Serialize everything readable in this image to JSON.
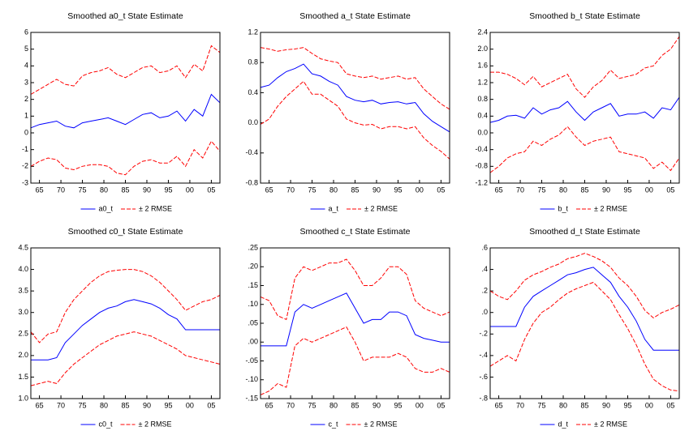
{
  "chart_data": [
    {
      "type": "line",
      "title": "Smoothed a0_t State Estimate",
      "x": [
        1963,
        1965,
        1967,
        1969,
        1971,
        1973,
        1975,
        1977,
        1979,
        1981,
        1983,
        1985,
        1987,
        1989,
        1991,
        1993,
        1995,
        1997,
        1999,
        2001,
        2003,
        2005,
        2007
      ],
      "xlim": [
        1963,
        2007
      ],
      "xticks": [
        {
          "value": 1965,
          "label": "65"
        },
        {
          "value": 1970,
          "label": "70"
        },
        {
          "value": 1975,
          "label": "75"
        },
        {
          "value": 1980,
          "label": "80"
        },
        {
          "value": 1985,
          "label": "85"
        },
        {
          "value": 1990,
          "label": "90"
        },
        {
          "value": 1995,
          "label": "95"
        },
        {
          "value": 2000,
          "label": "00"
        },
        {
          "value": 2005,
          "label": "05"
        }
      ],
      "ylim": [
        -3,
        6
      ],
      "yticks": [
        -3,
        -2,
        -1,
        0,
        1,
        2,
        3,
        4,
        5,
        6
      ],
      "series": [
        {
          "name": "a0_t",
          "color": "#0000ff",
          "values": [
            0.3,
            0.5,
            0.6,
            0.7,
            0.4,
            0.3,
            0.6,
            0.7,
            0.8,
            0.9,
            0.7,
            0.5,
            0.8,
            1.1,
            1.2,
            0.9,
            1.0,
            1.3,
            0.7,
            1.4,
            1.0,
            2.3,
            1.8
          ]
        },
        {
          "name": "± 2 RMSE",
          "color": "#ff0000",
          "upper": [
            2.3,
            2.6,
            2.9,
            3.2,
            2.9,
            2.8,
            3.4,
            3.6,
            3.7,
            3.9,
            3.5,
            3.3,
            3.6,
            3.9,
            4.0,
            3.6,
            3.7,
            4.0,
            3.3,
            4.1,
            3.7,
            5.2,
            4.8
          ],
          "lower": [
            -2.0,
            -1.7,
            -1.5,
            -1.6,
            -2.1,
            -2.2,
            -2.0,
            -1.9,
            -1.9,
            -2.0,
            -2.4,
            -2.5,
            -2.0,
            -1.7,
            -1.6,
            -1.8,
            -1.8,
            -1.4,
            -2.0,
            -1.0,
            -1.5,
            -0.5,
            -1.1
          ]
        }
      ]
    },
    {
      "type": "line",
      "title": "Smoothed a_t State Estimate",
      "x": [
        1963,
        1965,
        1967,
        1969,
        1971,
        1973,
        1975,
        1977,
        1979,
        1981,
        1983,
        1985,
        1987,
        1989,
        1991,
        1993,
        1995,
        1997,
        1999,
        2001,
        2003,
        2005,
        2007
      ],
      "xlim": [
        1963,
        2007
      ],
      "xticks": [
        {
          "value": 1965,
          "label": "65"
        },
        {
          "value": 1970,
          "label": "70"
        },
        {
          "value": 1975,
          "label": "75"
        },
        {
          "value": 1980,
          "label": "80"
        },
        {
          "value": 1985,
          "label": "85"
        },
        {
          "value": 1990,
          "label": "90"
        },
        {
          "value": 1995,
          "label": "95"
        },
        {
          "value": 2000,
          "label": "00"
        },
        {
          "value": 2005,
          "label": "05"
        }
      ],
      "ylim": [
        -0.8,
        1.2
      ],
      "yticks": [
        -0.8,
        -0.4,
        {
          "value": 0,
          "label": "0.0"
        },
        0.4,
        0.8,
        1.2
      ],
      "series": [
        {
          "name": "a_t",
          "color": "#0000ff",
          "values": [
            0.47,
            0.5,
            0.6,
            0.68,
            0.72,
            0.78,
            0.65,
            0.62,
            0.55,
            0.5,
            0.35,
            0.3,
            0.28,
            0.3,
            0.25,
            0.27,
            0.28,
            0.25,
            0.27,
            0.12,
            0.02,
            -0.05,
            -0.12
          ]
        },
        {
          "name": "± 2 RMSE",
          "color": "#ff0000",
          "upper": [
            1.0,
            0.98,
            0.95,
            0.97,
            0.98,
            1.0,
            0.92,
            0.85,
            0.82,
            0.8,
            0.65,
            0.62,
            0.6,
            0.62,
            0.58,
            0.6,
            0.62,
            0.58,
            0.6,
            0.45,
            0.35,
            0.25,
            0.18
          ],
          "lower": [
            -0.02,
            0.05,
            0.22,
            0.35,
            0.45,
            0.55,
            0.38,
            0.38,
            0.3,
            0.22,
            0.05,
            0.0,
            -0.03,
            -0.02,
            -0.08,
            -0.05,
            -0.05,
            -0.08,
            -0.05,
            -0.2,
            -0.3,
            -0.38,
            -0.48
          ]
        }
      ]
    },
    {
      "type": "line",
      "title": "Smoothed b_t State Estimate",
      "x": [
        1963,
        1965,
        1967,
        1969,
        1971,
        1973,
        1975,
        1977,
        1979,
        1981,
        1983,
        1985,
        1987,
        1989,
        1991,
        1993,
        1995,
        1997,
        1999,
        2001,
        2003,
        2005,
        2007
      ],
      "xlim": [
        1963,
        2007
      ],
      "xticks": [
        {
          "value": 1965,
          "label": "65"
        },
        {
          "value": 1970,
          "label": "70"
        },
        {
          "value": 1975,
          "label": "75"
        },
        {
          "value": 1980,
          "label": "80"
        },
        {
          "value": 1985,
          "label": "85"
        },
        {
          "value": 1990,
          "label": "90"
        },
        {
          "value": 1995,
          "label": "95"
        },
        {
          "value": 2000,
          "label": "00"
        },
        {
          "value": 2005,
          "label": "05"
        }
      ],
      "ylim": [
        -1.2,
        2.4
      ],
      "yticks": [
        -1.2,
        -0.8,
        -0.4,
        {
          "value": 0,
          "label": "0.0"
        },
        0.4,
        0.8,
        1.2,
        1.6,
        {
          "value": 2,
          "label": "2.0"
        },
        2.4
      ],
      "series": [
        {
          "name": "b_t",
          "color": "#0000ff",
          "values": [
            0.25,
            0.3,
            0.4,
            0.42,
            0.35,
            0.6,
            0.45,
            0.55,
            0.6,
            0.75,
            0.5,
            0.3,
            0.5,
            0.6,
            0.7,
            0.4,
            0.45,
            0.45,
            0.5,
            0.35,
            0.6,
            0.55,
            0.85
          ]
        },
        {
          "name": "± 2 RMSE",
          "color": "#ff0000",
          "upper": [
            1.45,
            1.45,
            1.4,
            1.3,
            1.15,
            1.35,
            1.1,
            1.2,
            1.3,
            1.4,
            1.05,
            0.85,
            1.1,
            1.25,
            1.5,
            1.3,
            1.35,
            1.4,
            1.55,
            1.6,
            1.85,
            2.0,
            2.3
          ],
          "lower": [
            -0.95,
            -0.8,
            -0.6,
            -0.5,
            -0.45,
            -0.2,
            -0.3,
            -0.15,
            -0.05,
            0.15,
            -0.1,
            -0.3,
            -0.2,
            -0.15,
            -0.1,
            -0.45,
            -0.5,
            -0.55,
            -0.6,
            -0.85,
            -0.7,
            -0.9,
            -0.6
          ]
        }
      ]
    },
    {
      "type": "line",
      "title": "Smoothed c0_t State Estimate",
      "x": [
        1963,
        1965,
        1967,
        1969,
        1971,
        1973,
        1975,
        1977,
        1979,
        1981,
        1983,
        1985,
        1987,
        1989,
        1991,
        1993,
        1995,
        1997,
        1999,
        2001,
        2003,
        2005,
        2007
      ],
      "xlim": [
        1963,
        2007
      ],
      "xticks": [
        {
          "value": 1965,
          "label": "65"
        },
        {
          "value": 1970,
          "label": "70"
        },
        {
          "value": 1975,
          "label": "75"
        },
        {
          "value": 1980,
          "label": "80"
        },
        {
          "value": 1985,
          "label": "85"
        },
        {
          "value": 1990,
          "label": "90"
        },
        {
          "value": 1995,
          "label": "95"
        },
        {
          "value": 2000,
          "label": "00"
        },
        {
          "value": 2005,
          "label": "05"
        }
      ],
      "ylim": [
        1,
        4.5
      ],
      "yticks": [
        {
          "value": 1,
          "label": "1.0"
        },
        1.5,
        {
          "value": 2,
          "label": "2.0"
        },
        2.5,
        {
          "value": 3,
          "label": "3.0"
        },
        3.5,
        {
          "value": 4,
          "label": "4.0"
        },
        4.5
      ],
      "series": [
        {
          "name": "c0_t",
          "color": "#0000ff",
          "values": [
            1.9,
            1.9,
            1.9,
            1.95,
            2.3,
            2.5,
            2.7,
            2.85,
            3.0,
            3.1,
            3.15,
            3.25,
            3.3,
            3.25,
            3.2,
            3.1,
            2.95,
            2.85,
            2.6,
            2.6,
            2.6,
            2.6,
            2.6
          ]
        },
        {
          "name": "± 2 RMSE",
          "color": "#ff0000",
          "upper": [
            2.55,
            2.3,
            2.5,
            2.55,
            3.0,
            3.3,
            3.5,
            3.7,
            3.85,
            3.95,
            3.98,
            4.0,
            4.0,
            3.95,
            3.85,
            3.7,
            3.5,
            3.3,
            3.05,
            3.15,
            3.25,
            3.3,
            3.4
          ],
          "lower": [
            1.3,
            1.35,
            1.4,
            1.35,
            1.6,
            1.8,
            1.95,
            2.1,
            2.25,
            2.35,
            2.45,
            2.5,
            2.55,
            2.5,
            2.45,
            2.35,
            2.25,
            2.15,
            2.0,
            1.95,
            1.9,
            1.85,
            1.8
          ]
        }
      ]
    },
    {
      "type": "line",
      "title": "Smoothed c_t State Estimate",
      "x": [
        1963,
        1965,
        1967,
        1969,
        1971,
        1973,
        1975,
        1977,
        1979,
        1981,
        1983,
        1985,
        1987,
        1989,
        1991,
        1993,
        1995,
        1997,
        1999,
        2001,
        2003,
        2005,
        2007
      ],
      "xlim": [
        1963,
        2007
      ],
      "xticks": [
        {
          "value": 1965,
          "label": "65"
        },
        {
          "value": 1970,
          "label": "70"
        },
        {
          "value": 1975,
          "label": "75"
        },
        {
          "value": 1980,
          "label": "80"
        },
        {
          "value": 1985,
          "label": "85"
        },
        {
          "value": 1990,
          "label": "90"
        },
        {
          "value": 1995,
          "label": "95"
        },
        {
          "value": 2000,
          "label": "00"
        },
        {
          "value": 2005,
          "label": "05"
        }
      ],
      "ylim": [
        -0.15,
        0.25
      ],
      "yticks": [
        {
          "value": -0.15,
          "label": "-.15"
        },
        {
          "value": -0.1,
          "label": "-.10"
        },
        {
          "value": -0.05,
          "label": "-.05"
        },
        {
          "value": 0,
          "label": ".00"
        },
        {
          "value": 0.05,
          "label": ".05"
        },
        {
          "value": 0.1,
          "label": ".10"
        },
        {
          "value": 0.15,
          "label": ".15"
        },
        {
          "value": 0.2,
          "label": ".20"
        },
        {
          "value": 0.25,
          "label": ".25"
        }
      ],
      "series": [
        {
          "name": "c_t",
          "color": "#0000ff",
          "values": [
            -0.01,
            -0.01,
            -0.01,
            -0.01,
            0.08,
            0.1,
            0.09,
            0.1,
            0.11,
            0.12,
            0.13,
            0.09,
            0.05,
            0.06,
            0.06,
            0.08,
            0.08,
            0.07,
            0.02,
            0.01,
            0.005,
            0.0,
            0.0
          ]
        },
        {
          "name": "± 2 RMSE",
          "color": "#ff0000",
          "upper": [
            0.12,
            0.11,
            0.07,
            0.06,
            0.17,
            0.2,
            0.19,
            0.2,
            0.21,
            0.21,
            0.22,
            0.19,
            0.15,
            0.15,
            0.17,
            0.2,
            0.2,
            0.18,
            0.11,
            0.09,
            0.08,
            0.07,
            0.08
          ],
          "lower": [
            -0.14,
            -0.13,
            -0.11,
            -0.12,
            -0.01,
            0.01,
            0.0,
            0.01,
            0.02,
            0.03,
            0.04,
            0.0,
            -0.05,
            -0.04,
            -0.04,
            -0.04,
            -0.03,
            -0.04,
            -0.07,
            -0.08,
            -0.08,
            -0.07,
            -0.08
          ]
        }
      ]
    },
    {
      "type": "line",
      "title": "Smoothed d_t State Estimate",
      "x": [
        1963,
        1965,
        1967,
        1969,
        1971,
        1973,
        1975,
        1977,
        1979,
        1981,
        1983,
        1985,
        1987,
        1989,
        1991,
        1993,
        1995,
        1997,
        1999,
        2001,
        2003,
        2005,
        2007
      ],
      "xlim": [
        1963,
        2007
      ],
      "xticks": [
        {
          "value": 1965,
          "label": "65"
        },
        {
          "value": 1970,
          "label": "70"
        },
        {
          "value": 1975,
          "label": "75"
        },
        {
          "value": 1980,
          "label": "80"
        },
        {
          "value": 1985,
          "label": "85"
        },
        {
          "value": 1990,
          "label": "90"
        },
        {
          "value": 1995,
          "label": "95"
        },
        {
          "value": 2000,
          "label": "00"
        },
        {
          "value": 2005,
          "label": "05"
        }
      ],
      "ylim": [
        -0.8,
        0.6
      ],
      "yticks": [
        {
          "value": -0.8,
          "label": "-.8"
        },
        {
          "value": -0.6,
          "label": "-.6"
        },
        {
          "value": -0.4,
          "label": "-.4"
        },
        {
          "value": -0.2,
          "label": "-.2"
        },
        {
          "value": 0,
          "label": ".0"
        },
        {
          "value": 0.2,
          "label": ".2"
        },
        {
          "value": 0.4,
          "label": ".4"
        },
        {
          "value": 0.6,
          "label": ".6"
        }
      ],
      "series": [
        {
          "name": "d_t",
          "color": "#0000ff",
          "values": [
            -0.13,
            -0.13,
            -0.13,
            -0.13,
            0.05,
            0.15,
            0.2,
            0.25,
            0.3,
            0.35,
            0.37,
            0.4,
            0.42,
            0.35,
            0.28,
            0.15,
            0.05,
            -0.08,
            -0.25,
            -0.35,
            -0.35,
            -0.35,
            -0.35
          ]
        },
        {
          "name": "± 2 RMSE",
          "color": "#ff0000",
          "upper": [
            0.2,
            0.15,
            0.12,
            0.2,
            0.3,
            0.35,
            0.38,
            0.42,
            0.45,
            0.5,
            0.52,
            0.55,
            0.52,
            0.48,
            0.42,
            0.32,
            0.25,
            0.15,
            0.02,
            -0.05,
            0.0,
            0.03,
            0.07
          ],
          "lower": [
            -0.5,
            -0.45,
            -0.4,
            -0.45,
            -0.25,
            -0.1,
            0.0,
            0.05,
            0.12,
            0.18,
            0.22,
            0.25,
            0.28,
            0.2,
            0.12,
            -0.02,
            -0.15,
            -0.3,
            -0.48,
            -0.62,
            -0.68,
            -0.72,
            -0.73
          ]
        }
      ]
    }
  ]
}
